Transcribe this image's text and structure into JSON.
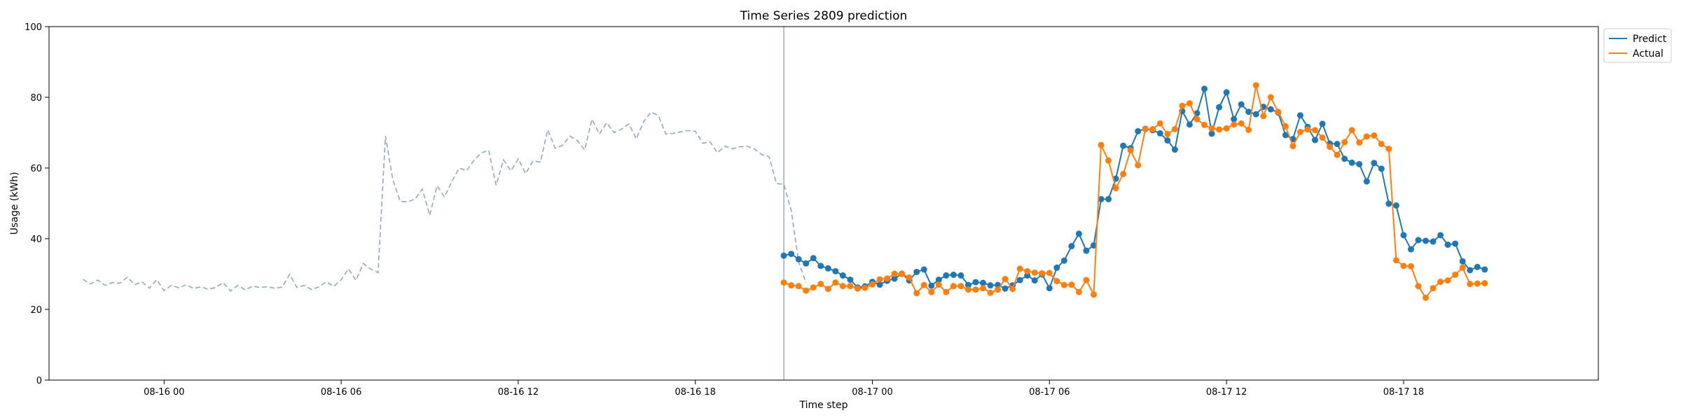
{
  "chart_data": {
    "type": "line",
    "title": "Time Series 2809 prediction",
    "xlabel": "Time step",
    "ylabel": "Usage (kWh)",
    "ylim": [
      0,
      100
    ],
    "yticks": [
      0,
      20,
      40,
      60,
      80,
      100
    ],
    "xlim_hours": [
      -3.9,
      48.6
    ],
    "xticks": [
      {
        "label": "08-16 00",
        "hour": 0
      },
      {
        "label": "08-16 06",
        "hour": 6
      },
      {
        "label": "08-16 12",
        "hour": 12
      },
      {
        "label": "08-16 18",
        "hour": 18
      },
      {
        "label": "08-17 00",
        "hour": 24
      },
      {
        "label": "08-17 06",
        "hour": 30
      },
      {
        "label": "08-17 12",
        "hour": 36
      },
      {
        "label": "08-17 18",
        "hour": 42
      }
    ],
    "forecast_start_hour": 21.0,
    "step_hours": 0.25,
    "history": {
      "start_hour": -2.75,
      "style": "dashed",
      "color": "#8fa8c8",
      "values": [
        28.5,
        27.2,
        28.3,
        26.8,
        27.6,
        27.4,
        29.1,
        27.0,
        27.8,
        26.0,
        28.4,
        25.3,
        26.8,
        26.1,
        27.0,
        25.9,
        26.4,
        25.7,
        26.2,
        27.6,
        25.2,
        26.8,
        25.5,
        26.6,
        26.2,
        26.4,
        26.0,
        26.3,
        29.9,
        26.2,
        26.8,
        25.6,
        26.4,
        27.8,
        26.5,
        28.4,
        31.5,
        28.2,
        33.0,
        31.4,
        30.4,
        69.0,
        56.7,
        50.6,
        50.4,
        51.2,
        54.0,
        46.6,
        55.0,
        51.8,
        56.2,
        60.0,
        59.2,
        62.2,
        64.3,
        65.0,
        55.1,
        62.3,
        59.2,
        62.6,
        58.4,
        62.0,
        61.7,
        70.8,
        65.6,
        66.4,
        69.0,
        67.8,
        65.1,
        73.8,
        69.6,
        72.8,
        70.0,
        71.0,
        72.5,
        68.2,
        73.1,
        75.8,
        74.8,
        69.6,
        69.8,
        70.2,
        70.6,
        70.4,
        67.0,
        67.4,
        64.3,
        66.2,
        65.4,
        66.0,
        66.2,
        65.4,
        63.8,
        63.2,
        55.6,
        55.4,
        48.0,
        33.5,
        27.5
      ]
    },
    "series": [
      {
        "name": "Predict",
        "color": "#1f77b4",
        "values": [
          35.2,
          35.7,
          34.2,
          33.0,
          34.5,
          32.3,
          31.6,
          30.8,
          29.6,
          28.4,
          26.2,
          26.5,
          27.8,
          27.0,
          28.1,
          28.7,
          30.1,
          28.2,
          30.6,
          31.3,
          26.7,
          28.4,
          29.6,
          29.8,
          29.6,
          26.9,
          27.7,
          27.5,
          26.8,
          26.9,
          25.9,
          26.8,
          28.3,
          29.6,
          28.2,
          29.9,
          26.0,
          31.8,
          33.8,
          37.9,
          41.4,
          36.6,
          38.1,
          51.2,
          51.2,
          57.0,
          66.3,
          65.6,
          70.4,
          71.1,
          70.7,
          69.8,
          67.8,
          65.2,
          76.1,
          72.3,
          75.5,
          82.4,
          69.7,
          77.2,
          81.4,
          73.8,
          78.0,
          75.9,
          75.2,
          77.3,
          76.6,
          75.7,
          69.3,
          68.2,
          74.9,
          71.6,
          67.9,
          72.5,
          66.9,
          66.8,
          62.6,
          61.5,
          61.1,
          56.2,
          61.4,
          59.8,
          49.9,
          49.4,
          41.0,
          37.0,
          39.6,
          39.4,
          39.2,
          41.0,
          38.3,
          38.6,
          33.6,
          31.1,
          32.0,
          31.3
        ]
      },
      {
        "name": "Actual",
        "color": "#ff7f0e",
        "values": [
          27.6,
          26.8,
          26.6,
          25.3,
          26.2,
          27.2,
          25.8,
          27.6,
          26.6,
          26.6,
          25.9,
          26.1,
          27.1,
          28.5,
          28.7,
          30.1,
          30.0,
          29.0,
          24.6,
          26.9,
          24.9,
          27.0,
          24.9,
          26.6,
          26.6,
          25.6,
          25.6,
          26.0,
          24.7,
          25.6,
          28.6,
          25.8,
          31.5,
          30.8,
          30.4,
          30.2,
          30.3,
          28.0,
          26.9,
          27.0,
          24.9,
          28.3,
          24.2,
          66.5,
          62.1,
          54.3,
          58.3,
          65.0,
          60.8,
          71.0,
          71.0,
          72.6,
          69.6,
          71.0,
          77.6,
          78.3,
          73.8,
          72.2,
          71.2,
          70.9,
          71.2,
          72.3,
          72.6,
          70.8,
          83.4,
          74.7,
          80.0,
          75.9,
          71.8,
          66.2,
          70.2,
          70.9,
          70.7,
          68.6,
          66.0,
          63.7,
          67.3,
          70.7,
          67.2,
          68.9,
          69.2,
          66.8,
          65.4,
          33.9,
          32.3,
          32.2,
          26.6,
          23.3,
          26.0,
          27.8,
          28.2,
          29.8,
          31.8,
          27.2,
          27.3,
          27.4
        ]
      }
    ],
    "legend": {
      "position": "top-right-outside",
      "entries": [
        "Predict",
        "Actual"
      ]
    },
    "grid": false
  }
}
